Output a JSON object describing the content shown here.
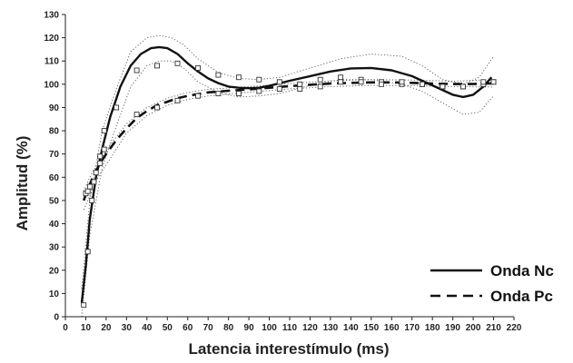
{
  "chart_data": {
    "type": "scatter",
    "xlabel": "Latencia interestímulo (ms)",
    "ylabel": "Amplitud (%)",
    "xlim": [
      0,
      220
    ],
    "ylim": [
      0,
      130
    ],
    "x_ticks": [
      0,
      10,
      20,
      30,
      40,
      50,
      60,
      70,
      80,
      90,
      100,
      110,
      120,
      130,
      140,
      150,
      160,
      170,
      180,
      190,
      200,
      210,
      220
    ],
    "y_ticks": [
      0,
      10,
      20,
      30,
      40,
      50,
      60,
      70,
      80,
      90,
      100,
      110,
      120,
      130
    ],
    "grid": false,
    "legend": "bottom-right",
    "series": [
      {
        "name": "Onda Nc",
        "style": "solid",
        "points": [
          [
            9,
            5
          ],
          [
            11,
            28
          ],
          [
            13,
            50
          ],
          [
            15,
            62
          ],
          [
            17,
            69
          ],
          [
            19,
            80
          ],
          [
            25,
            90
          ],
          [
            35,
            106
          ],
          [
            45,
            108
          ],
          [
            55,
            109
          ],
          [
            65,
            107
          ],
          [
            75,
            104
          ],
          [
            85,
            103
          ],
          [
            95,
            102
          ],
          [
            105,
            101
          ],
          [
            115,
            100
          ],
          [
            125,
            102
          ],
          [
            135,
            103
          ],
          [
            145,
            102
          ],
          [
            155,
            101
          ],
          [
            165,
            100
          ],
          [
            175,
            100
          ],
          [
            185,
            99
          ],
          [
            195,
            99
          ],
          [
            205,
            100
          ],
          [
            210,
            101
          ]
        ],
        "fit": [
          [
            8,
            6
          ],
          [
            10,
            22
          ],
          [
            12,
            42
          ],
          [
            15,
            60
          ],
          [
            18,
            72
          ],
          [
            22,
            86
          ],
          [
            27,
            99
          ],
          [
            32,
            108
          ],
          [
            37,
            113
          ],
          [
            42,
            115.5
          ],
          [
            46,
            116
          ],
          [
            50,
            115.5
          ],
          [
            55,
            113
          ],
          [
            60,
            109
          ],
          [
            65,
            105.5
          ],
          [
            70,
            102.5
          ],
          [
            75,
            100.5
          ],
          [
            80,
            99
          ],
          [
            85,
            98.5
          ],
          [
            90,
            98.3
          ],
          [
            95,
            98.5
          ],
          [
            100,
            99.3
          ],
          [
            110,
            101.5
          ],
          [
            120,
            103.5
          ],
          [
            130,
            105.5
          ],
          [
            140,
            106.8
          ],
          [
            150,
            107
          ],
          [
            160,
            106
          ],
          [
            170,
            103.5
          ],
          [
            180,
            99.5
          ],
          [
            190,
            95.5
          ],
          [
            195,
            94.5
          ],
          [
            200,
            95.5
          ],
          [
            205,
            99
          ],
          [
            209,
            103
          ]
        ],
        "ci_upper": [
          [
            8,
            12
          ],
          [
            12,
            50
          ],
          [
            18,
            80
          ],
          [
            25,
            98
          ],
          [
            32,
            114
          ],
          [
            40,
            120
          ],
          [
            46,
            121
          ],
          [
            52,
            120
          ],
          [
            58,
            117
          ],
          [
            65,
            111
          ],
          [
            75,
            105
          ],
          [
            85,
            102.5
          ],
          [
            95,
            102
          ],
          [
            105,
            103
          ],
          [
            120,
            107
          ],
          [
            135,
            111
          ],
          [
            150,
            113
          ],
          [
            165,
            112
          ],
          [
            175,
            108
          ],
          [
            185,
            102
          ],
          [
            195,
            100
          ],
          [
            203,
            103
          ],
          [
            210,
            112
          ]
        ],
        "ci_lower": [
          [
            8,
            0
          ],
          [
            12,
            35
          ],
          [
            18,
            64
          ],
          [
            25,
            82
          ],
          [
            32,
            99
          ],
          [
            40,
            108
          ],
          [
            46,
            110
          ],
          [
            52,
            110
          ],
          [
            58,
            107
          ],
          [
            65,
            101
          ],
          [
            75,
            96.5
          ],
          [
            85,
            94.5
          ],
          [
            95,
            95
          ],
          [
            105,
            96
          ],
          [
            120,
            99.5
          ],
          [
            135,
            102
          ],
          [
            150,
            102
          ],
          [
            165,
            100
          ],
          [
            175,
            97
          ],
          [
            185,
            92
          ],
          [
            195,
            87
          ],
          [
            203,
            88
          ],
          [
            210,
            95
          ]
        ]
      },
      {
        "name": "Onda Pc",
        "style": "dashed",
        "points": [
          [
            10,
            53
          ],
          [
            11,
            54
          ],
          [
            12,
            56
          ],
          [
            14,
            58
          ],
          [
            17,
            66
          ],
          [
            19,
            72
          ],
          [
            35,
            87
          ],
          [
            45,
            90
          ],
          [
            55,
            93
          ],
          [
            65,
            95
          ],
          [
            75,
            96
          ],
          [
            85,
            96
          ],
          [
            95,
            97
          ],
          [
            105,
            98
          ],
          [
            115,
            98
          ],
          [
            125,
            99
          ],
          [
            135,
            101
          ],
          [
            145,
            101
          ],
          [
            155,
            100
          ],
          [
            165,
            101
          ],
          [
            175,
            100
          ],
          [
            185,
            99
          ],
          [
            195,
            99
          ],
          [
            205,
            101
          ],
          [
            210,
            101
          ]
        ],
        "fit": [
          [
            9,
            50
          ],
          [
            11,
            55
          ],
          [
            14,
            61
          ],
          [
            17,
            66
          ],
          [
            20,
            70
          ],
          [
            25,
            76
          ],
          [
            30,
            81
          ],
          [
            35,
            85.5
          ],
          [
            40,
            88.5
          ],
          [
            45,
            91
          ],
          [
            50,
            92.5
          ],
          [
            55,
            94
          ],
          [
            60,
            95
          ],
          [
            70,
            96.5
          ],
          [
            80,
            97.2
          ],
          [
            90,
            97.8
          ],
          [
            100,
            98.5
          ],
          [
            110,
            99.2
          ],
          [
            120,
            99.8
          ],
          [
            130,
            100.3
          ],
          [
            140,
            100.6
          ],
          [
            150,
            100.8
          ],
          [
            160,
            100.8
          ],
          [
            170,
            100.6
          ],
          [
            180,
            100.3
          ],
          [
            190,
            100.1
          ],
          [
            200,
            100.1
          ],
          [
            210,
            100.4
          ]
        ],
        "ci_upper": [
          [
            9,
            54
          ],
          [
            12,
            60
          ],
          [
            16,
            66
          ],
          [
            22,
            74
          ],
          [
            30,
            83
          ],
          [
            40,
            90
          ],
          [
            50,
            94
          ],
          [
            60,
            96.5
          ],
          [
            70,
            97.8
          ],
          [
            90,
            99
          ],
          [
            110,
            100.3
          ],
          [
            130,
            101.5
          ],
          [
            150,
            102
          ],
          [
            170,
            101.8
          ],
          [
            190,
            101.3
          ],
          [
            210,
            102
          ]
        ],
        "ci_lower": [
          [
            9,
            46
          ],
          [
            12,
            52
          ],
          [
            16,
            60
          ],
          [
            22,
            68
          ],
          [
            30,
            79
          ],
          [
            40,
            86.5
          ],
          [
            50,
            91
          ],
          [
            60,
            93.5
          ],
          [
            70,
            95
          ],
          [
            90,
            96.6
          ],
          [
            110,
            98
          ],
          [
            130,
            99
          ],
          [
            150,
            99.5
          ],
          [
            170,
            99.4
          ],
          [
            190,
            99
          ],
          [
            210,
            98.8
          ]
        ]
      }
    ]
  }
}
